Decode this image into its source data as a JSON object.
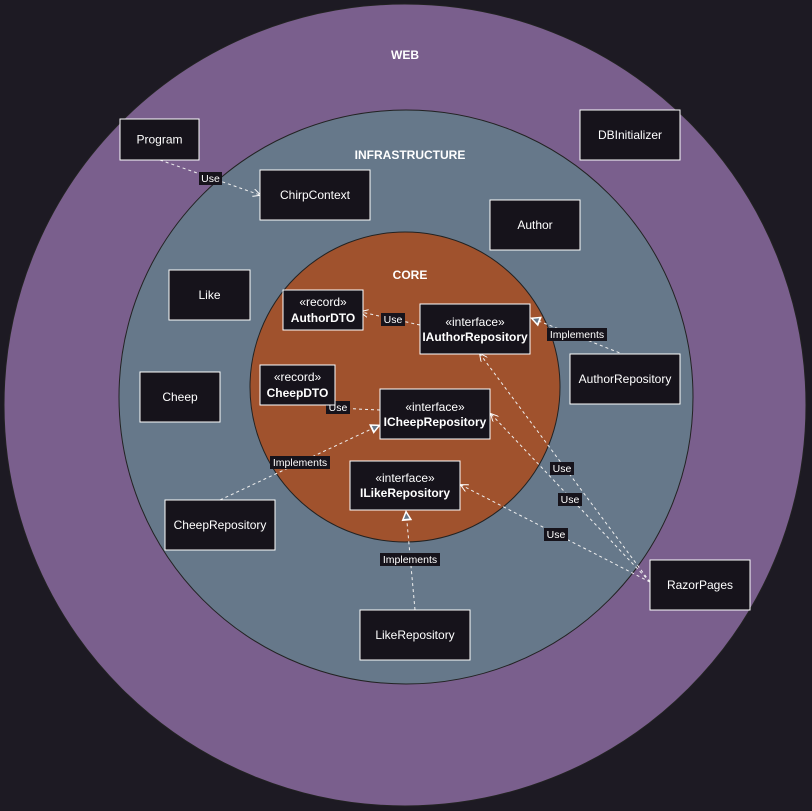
{
  "layers": {
    "web": {
      "title": "WEB",
      "color": "#7a5f8d"
    },
    "infrastructure": {
      "title": "INFRASTRUCTURE",
      "color": "#66788a"
    },
    "core": {
      "title": "CORE",
      "color": "#a0522d"
    }
  },
  "boxes": {
    "program": {
      "label": "Program"
    },
    "dbinitializer": {
      "label": "DBInitializer"
    },
    "chirpcontext": {
      "label": "ChirpContext"
    },
    "author": {
      "label": "Author"
    },
    "like": {
      "label": "Like"
    },
    "cheep": {
      "label": "Cheep"
    },
    "authordto": {
      "stereotype": "«record»",
      "label": "AuthorDTO"
    },
    "cheepdto": {
      "stereotype": "«record»",
      "label": "CheepDTO"
    },
    "iauthorrepository": {
      "stereotype": "«interface»",
      "label": "IAuthorRepository"
    },
    "icheeprepository": {
      "stereotype": "«interface»",
      "label": "ICheepRepository"
    },
    "ilikerepository": {
      "stereotype": "«interface»",
      "label": "ILikeRepository"
    },
    "authorrepository": {
      "label": "AuthorRepository"
    },
    "cheeprepository": {
      "label": "CheepRepository"
    },
    "likerepository": {
      "label": "LikeRepository"
    },
    "razorpages": {
      "label": "RazorPages"
    }
  },
  "edges": {
    "program_chirpcontext": {
      "label": "Use",
      "kind": "dependency"
    },
    "iauthor_authordto": {
      "label": "Use",
      "kind": "dependency"
    },
    "icheep_cheepdto": {
      "label": "Use",
      "kind": "dependency"
    },
    "authorrepo_iauthor": {
      "label": "Implements",
      "kind": "realization"
    },
    "cheeprepo_icheep": {
      "label": "Implements",
      "kind": "realization"
    },
    "likerepo_ilike": {
      "label": "Implements",
      "kind": "realization"
    },
    "razor_iauthor": {
      "label": "Use",
      "kind": "dependency"
    },
    "razor_icheep": {
      "label": "Use",
      "kind": "dependency"
    },
    "razor_ilike": {
      "label": "Use",
      "kind": "dependency"
    }
  },
  "colors": {
    "background": "#1d1a23",
    "box_fill": "#16131b",
    "line": "#ffffff"
  }
}
